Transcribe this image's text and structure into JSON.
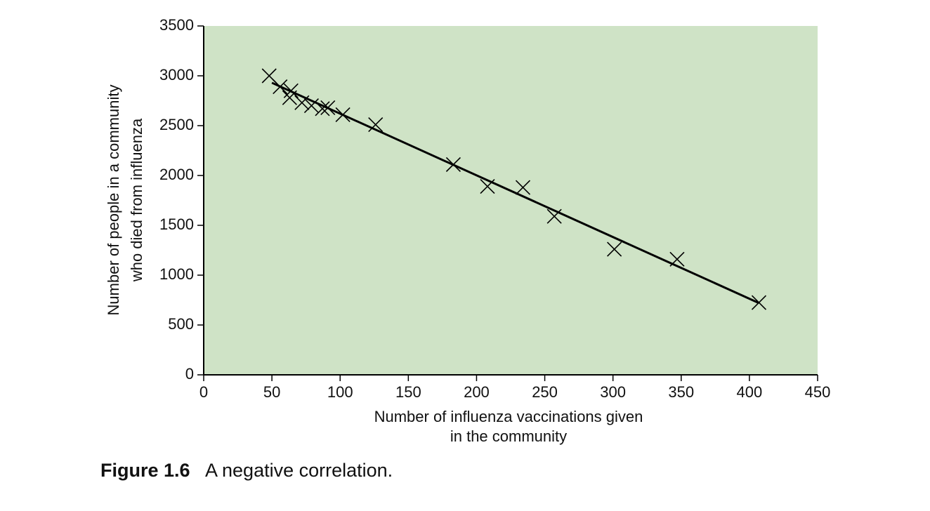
{
  "chart_data": {
    "type": "scatter",
    "xlabel": [
      "Number of influenza vaccinations given",
      "in the community"
    ],
    "ylabel": [
      "Number of people in a community",
      "who died from influenza"
    ],
    "x": [
      48,
      56,
      64,
      63,
      72,
      79,
      87,
      91,
      102,
      126,
      183,
      208,
      234,
      257,
      301,
      347,
      407
    ],
    "values": [
      3000,
      2890,
      2850,
      2780,
      2730,
      2700,
      2670,
      2680,
      2610,
      2510,
      2110,
      1890,
      1880,
      1590,
      1260,
      1160,
      725
    ],
    "color": "#000000",
    "trend": {
      "x": [
        50,
        407
      ],
      "values": [
        2930,
        720
      ]
    },
    "background": "#cfe3c6",
    "xlim": [
      0,
      450
    ],
    "xticks": [
      0,
      50,
      100,
      150,
      200,
      250,
      300,
      350,
      400,
      450
    ],
    "ylim": [
      0,
      3500
    ],
    "yticks": [
      0,
      500,
      1000,
      1500,
      2000,
      2500,
      3000,
      3500
    ],
    "caption": {
      "label": "Figure 1.6",
      "text": "A negative correlation."
    }
  }
}
